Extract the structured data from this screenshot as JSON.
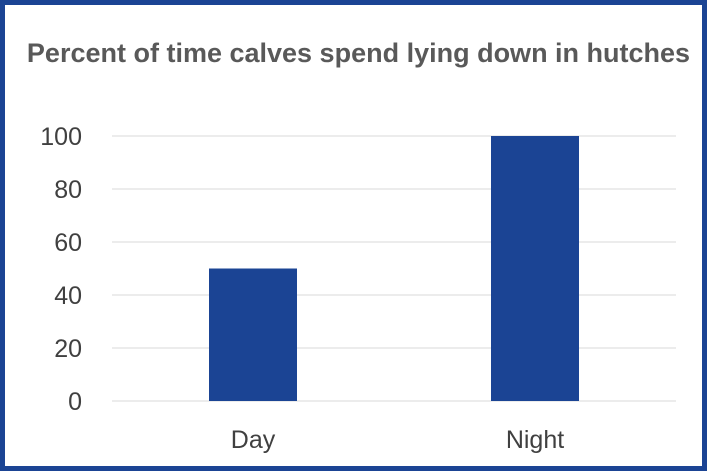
{
  "chart_data": {
    "type": "bar",
    "title": "Percent of time calves spend lying down in hutches",
    "categories": [
      "Day",
      "Night"
    ],
    "values": [
      50,
      100
    ],
    "xlabel": "",
    "ylabel": "",
    "ylim": [
      0,
      100
    ],
    "yticks": [
      0,
      20,
      40,
      60,
      80,
      100
    ],
    "grid": true,
    "legend": "none",
    "bar_color": "#1b4494",
    "grid_color": "#d9d9d9",
    "border_color": "#1b4494"
  }
}
